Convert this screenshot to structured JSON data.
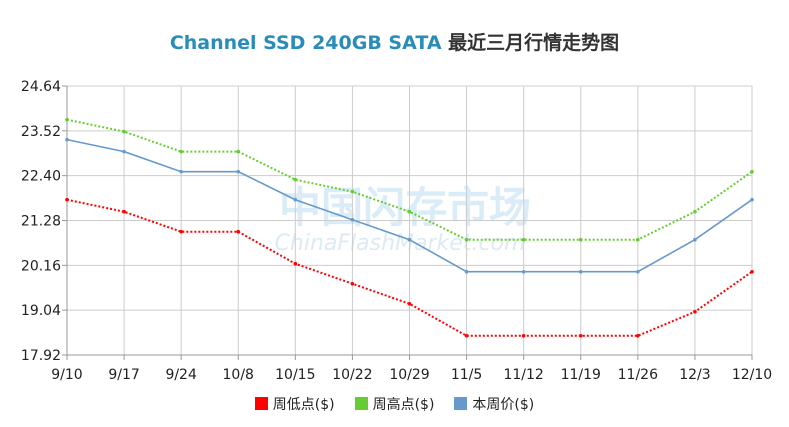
{
  "title": {
    "product": "Channel SSD 240GB SATA",
    "suffix": "最近三月行情走势图"
  },
  "watermark": {
    "cn": "中国闪存市场",
    "en": "ChinaFlashMarket.com"
  },
  "colors": {
    "low": "#ff0000",
    "high": "#66cc33",
    "week": "#6699cc",
    "title_en": "#2a8cb8",
    "grid": "#cccccc",
    "axis": "#999999"
  },
  "chart_data": {
    "type": "line",
    "categories": [
      "9/10",
      "9/17",
      "9/24",
      "10/8",
      "10/15",
      "10/22",
      "10/29",
      "11/5",
      "11/12",
      "11/19",
      "11/26",
      "12/3",
      "12/10"
    ],
    "ylim": [
      17.92,
      24.64
    ],
    "yticks": [
      "24.64",
      "23.52",
      "22.40",
      "21.28",
      "20.16",
      "19.04",
      "17.92"
    ],
    "grid": true,
    "legend_position": "bottom",
    "series": [
      {
        "name": "周低点($)",
        "style": "dotted",
        "color": "#ff0000",
        "values": [
          21.8,
          21.5,
          21.0,
          21.0,
          20.2,
          19.7,
          19.2,
          18.4,
          18.4,
          18.4,
          18.4,
          19.0,
          20.0
        ]
      },
      {
        "name": "周高点($)",
        "style": "dotted",
        "color": "#66cc33",
        "values": [
          23.8,
          23.5,
          23.0,
          23.0,
          22.3,
          22.0,
          21.5,
          20.8,
          20.8,
          20.8,
          20.8,
          21.5,
          22.5
        ]
      },
      {
        "name": "本周价($)",
        "style": "solid",
        "color": "#6699cc",
        "values": [
          23.3,
          23.0,
          22.5,
          22.5,
          21.8,
          21.3,
          20.8,
          20.0,
          20.0,
          20.0,
          20.0,
          20.8,
          21.8
        ]
      }
    ]
  }
}
